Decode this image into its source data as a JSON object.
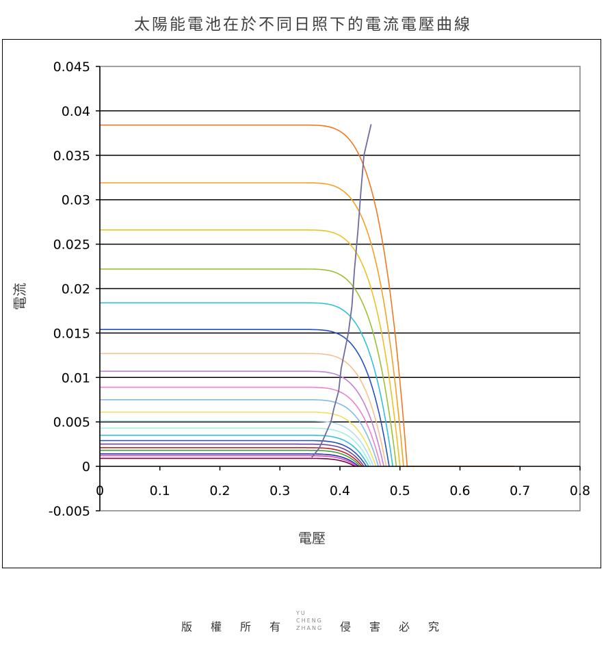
{
  "chart_data": {
    "type": "line",
    "title": "太陽能電池在於不同日照下的電流電壓曲線",
    "xlabel": "電壓",
    "ylabel": "電流",
    "xlim": [
      0,
      0.8
    ],
    "ylim": [
      -0.005,
      0.045
    ],
    "x_ticks": [
      "0",
      "0.1",
      "0.2",
      "0.3",
      "0.4",
      "0.5",
      "0.6",
      "0.7",
      "0.8"
    ],
    "y_ticks": [
      "0.045",
      "0.04",
      "0.035",
      "0.03",
      "0.025",
      "0.02",
      "0.015",
      "0.01",
      "0.005",
      "0",
      "-0.005"
    ],
    "grid": "horizontal",
    "legend": "none",
    "series": [
      {
        "color": "#f07820",
        "isc": 0.0384,
        "voc": 0.512,
        "knee": 0.33,
        "xmax": 0.69
      },
      {
        "color": "#f5a020",
        "isc": 0.0319,
        "voc": 0.506,
        "knee": 0.33
      },
      {
        "color": "#f0c020",
        "isc": 0.0266,
        "voc": 0.5,
        "knee": 0.33
      },
      {
        "color": "#9cc030",
        "isc": 0.0222,
        "voc": 0.494,
        "knee": 0.33
      },
      {
        "color": "#30c0d8",
        "isc": 0.0184,
        "voc": 0.488,
        "knee": 0.33
      },
      {
        "color": "#2050c0",
        "isc": 0.0154,
        "voc": 0.482,
        "knee": 0.33
      },
      {
        "color": "#f5c090",
        "isc": 0.0127,
        "voc": 0.477,
        "knee": 0.33
      },
      {
        "color": "#c080d8",
        "isc": 0.0107,
        "voc": 0.473,
        "knee": 0.33
      },
      {
        "color": "#f080c8",
        "isc": 0.0089,
        "voc": 0.468,
        "knee": 0.33
      },
      {
        "color": "#80b8f0",
        "isc": 0.0075,
        "voc": 0.464,
        "knee": 0.33
      },
      {
        "color": "#f0e060",
        "isc": 0.0061,
        "voc": 0.46,
        "knee": 0.33
      },
      {
        "color": "#b0e0f0",
        "isc": 0.0051,
        "voc": 0.456,
        "knee": 0.33
      },
      {
        "color": "#a0f0e0",
        "isc": 0.0043,
        "voc": 0.452,
        "knee": 0.33
      },
      {
        "color": "#30c0d8",
        "isc": 0.0035,
        "voc": 0.448,
        "knee": 0.33
      },
      {
        "color": "#2050c0",
        "isc": 0.0029,
        "voc": 0.444,
        "knee": 0.33
      },
      {
        "color": "#7040a0",
        "isc": 0.0025,
        "voc": 0.44,
        "knee": 0.33
      },
      {
        "color": "#c02020",
        "isc": 0.0021,
        "voc": 0.437,
        "knee": 0.33
      },
      {
        "color": "#40a040",
        "isc": 0.0018,
        "voc": 0.434,
        "knee": 0.33
      },
      {
        "color": "#2030a0",
        "isc": 0.0014,
        "voc": 0.431,
        "knee": 0.33
      },
      {
        "color": "#e040c0",
        "isc": 0.0012,
        "voc": 0.428,
        "knee": 0.33
      },
      {
        "color": "#800040",
        "isc": 0.0009,
        "voc": 0.425,
        "knee": 0.33
      }
    ],
    "max_power_line": {
      "color": "#6a6aa0",
      "points": [
        [
          0.353,
          0.001
        ],
        [
          0.365,
          0.002
        ],
        [
          0.372,
          0.003
        ],
        [
          0.385,
          0.005
        ],
        [
          0.39,
          0.0065
        ],
        [
          0.398,
          0.0085
        ],
        [
          0.402,
          0.011
        ],
        [
          0.408,
          0.013
        ],
        [
          0.414,
          0.015
        ],
        [
          0.42,
          0.018
        ],
        [
          0.424,
          0.022
        ],
        [
          0.43,
          0.0265
        ],
        [
          0.435,
          0.031
        ],
        [
          0.44,
          0.035
        ],
        [
          0.452,
          0.0385
        ]
      ]
    }
  },
  "footer": {
    "chars": [
      "版",
      "權",
      "所",
      "有",
      "侵",
      "害",
      "必",
      "究"
    ],
    "logo_lines": [
      "YU",
      "CHENG",
      "ZHANG"
    ]
  }
}
